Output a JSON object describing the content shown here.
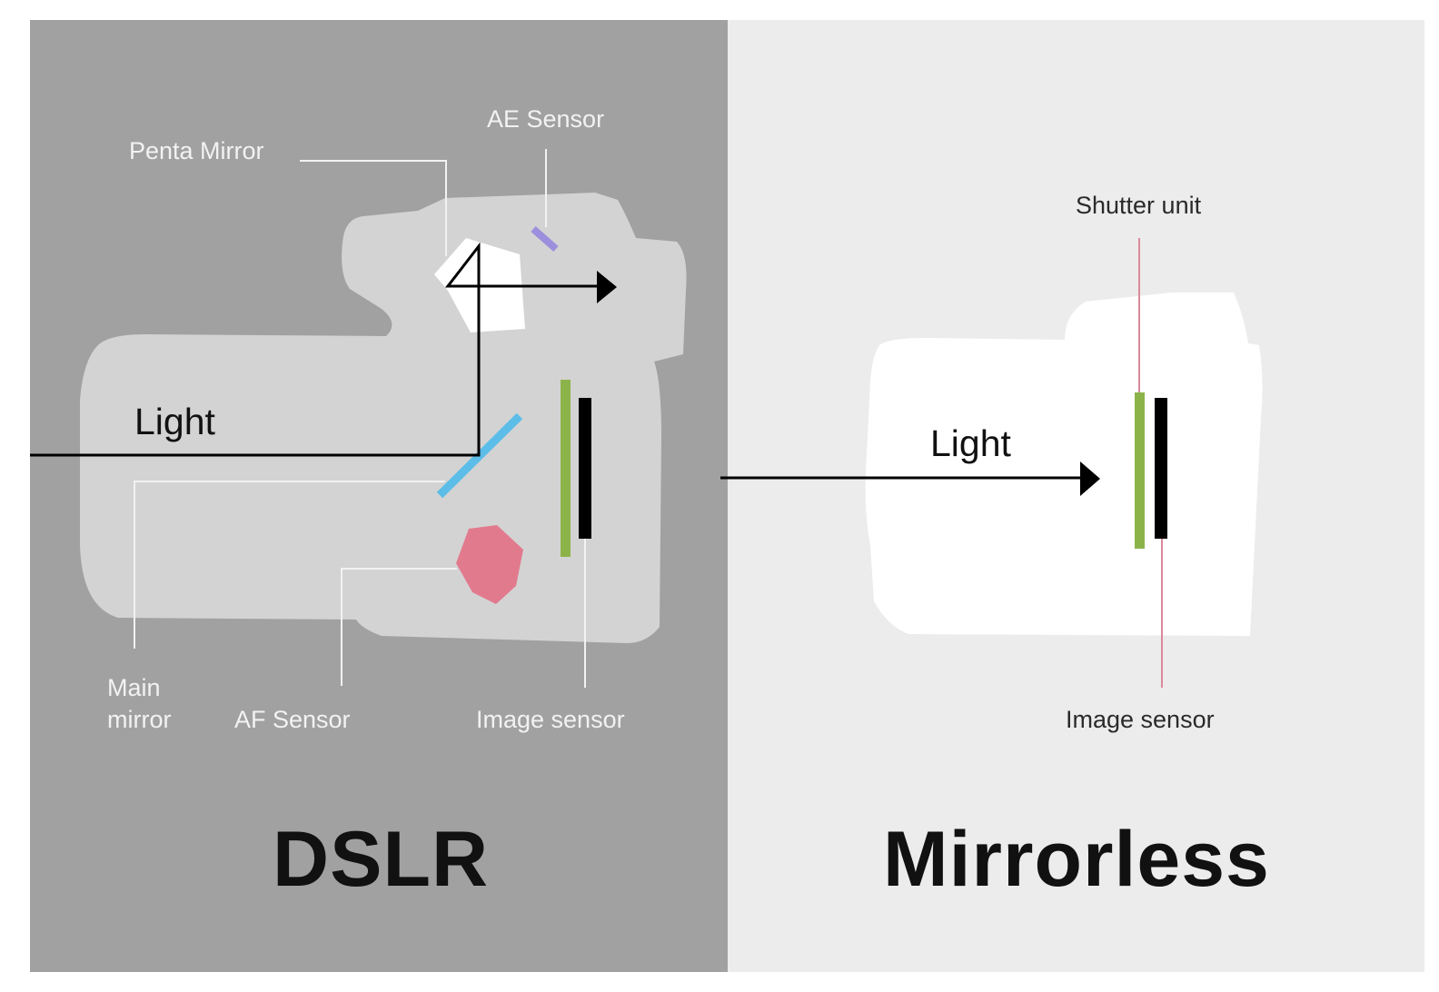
{
  "dslr": {
    "title": "DSLR",
    "light_label": "Light",
    "labels": {
      "penta_mirror": "Penta Mirror",
      "ae_sensor": "AE Sensor",
      "main_mirror_line1": "Main",
      "main_mirror_line2": "mirror",
      "af_sensor": "AF Sensor",
      "image_sensor": "Image sensor"
    }
  },
  "mirrorless": {
    "title": "Mirrorless",
    "light_label": "Light",
    "labels": {
      "shutter_unit": "Shutter unit",
      "image_sensor": "Image sensor"
    }
  },
  "colors": {
    "dslr_background": "#a1a1a1",
    "mirrorless_background": "#ececec",
    "dslr_body": "#d3d3d3",
    "mirrorless_body": "#ffffff",
    "shutter": "#8cb34a",
    "sensor": "#000000",
    "main_mirror": "#5bbde8",
    "af_sensor": "#e27a8e",
    "ae_sensor": "#9c8fdd",
    "shutter_line": "#d98a9a"
  }
}
